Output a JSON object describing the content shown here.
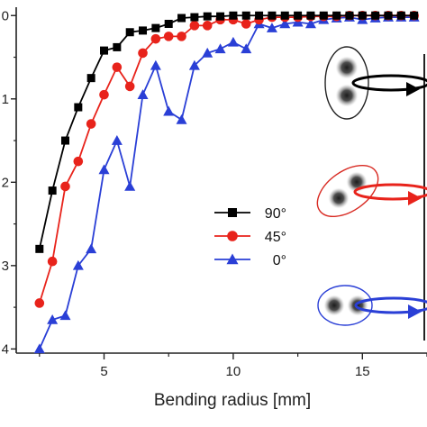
{
  "chart_data": {
    "type": "line",
    "title": "",
    "xlabel": "Bending radius [mm]",
    "ylabel": "",
    "xlim": [
      1.6,
      17.5
    ],
    "ylim": [
      -4.05,
      0.1
    ],
    "x_ticks": [
      5,
      10,
      15
    ],
    "x_tick_labels": [
      "5",
      "10",
      "15"
    ],
    "y_ticks": [
      0,
      -1,
      -2,
      -3,
      -4
    ],
    "y_tick_labels": [
      "0",
      "1",
      "2",
      "3",
      "4"
    ],
    "grid": false,
    "legend_position": "center-left",
    "series": [
      {
        "name": "90°",
        "color": "#000000",
        "marker": "square",
        "x": [
          2.5,
          3.0,
          3.5,
          4.0,
          4.5,
          5.0,
          5.5,
          6.0,
          6.5,
          7.0,
          7.5,
          8.0,
          8.5,
          9.0,
          9.5,
          10.0,
          10.5,
          11.0,
          11.5,
          12.0,
          12.5,
          13.0,
          13.5,
          14.0,
          14.5,
          15.0,
          15.5,
          16.0,
          16.5,
          17.0
        ],
        "y": [
          -2.8,
          -2.1,
          -1.5,
          -1.1,
          -0.75,
          -0.42,
          -0.38,
          -0.2,
          -0.18,
          -0.15,
          -0.1,
          -0.03,
          -0.02,
          -0.01,
          -0.01,
          0.0,
          0.0,
          0.0,
          0.0,
          0.0,
          0.0,
          0.0,
          0.0,
          0.0,
          0.0,
          0.0,
          0.0,
          0.0,
          0.0,
          0.0
        ]
      },
      {
        "name": "45°",
        "color": "#e8231b",
        "marker": "circle",
        "x": [
          2.5,
          3.0,
          3.5,
          4.0,
          4.5,
          5.0,
          5.5,
          6.0,
          6.5,
          7.0,
          7.5,
          8.0,
          8.5,
          9.0,
          9.5,
          10.0,
          10.5,
          11.0,
          11.5,
          12.0,
          12.5,
          13.0,
          13.5,
          14.0,
          14.5,
          15.0,
          15.5,
          16.0,
          16.5,
          17.0
        ],
        "y": [
          -3.45,
          -2.95,
          -2.05,
          -1.75,
          -1.3,
          -0.95,
          -0.62,
          -0.85,
          -0.45,
          -0.28,
          -0.25,
          -0.25,
          -0.12,
          -0.12,
          -0.05,
          -0.05,
          -0.1,
          -0.05,
          -0.02,
          -0.02,
          -0.02,
          -0.01,
          -0.01,
          -0.01,
          0.0,
          0.0,
          0.0,
          0.0,
          0.0,
          0.0
        ]
      },
      {
        "name": "0°",
        "color": "#2a3fd6",
        "marker": "triangle",
        "x": [
          2.5,
          3.0,
          3.5,
          4.0,
          4.5,
          5.0,
          5.5,
          6.0,
          6.5,
          7.0,
          7.5,
          8.0,
          8.5,
          9.0,
          9.5,
          10.0,
          10.5,
          11.0,
          11.5,
          12.0,
          12.5,
          13.0,
          13.5,
          14.0,
          14.5,
          15.0,
          15.5,
          16.0,
          16.5,
          17.0
        ],
        "y": [
          -4.0,
          -3.65,
          -3.6,
          -3.0,
          -2.8,
          -1.85,
          -1.5,
          -2.05,
          -0.95,
          -0.6,
          -1.15,
          -1.25,
          -0.6,
          -0.45,
          -0.4,
          -0.32,
          -0.4,
          -0.1,
          -0.15,
          -0.1,
          -0.08,
          -0.1,
          -0.05,
          -0.03,
          -0.02,
          -0.05,
          -0.03,
          -0.02,
          -0.02,
          -0.02
        ]
      }
    ]
  }
}
